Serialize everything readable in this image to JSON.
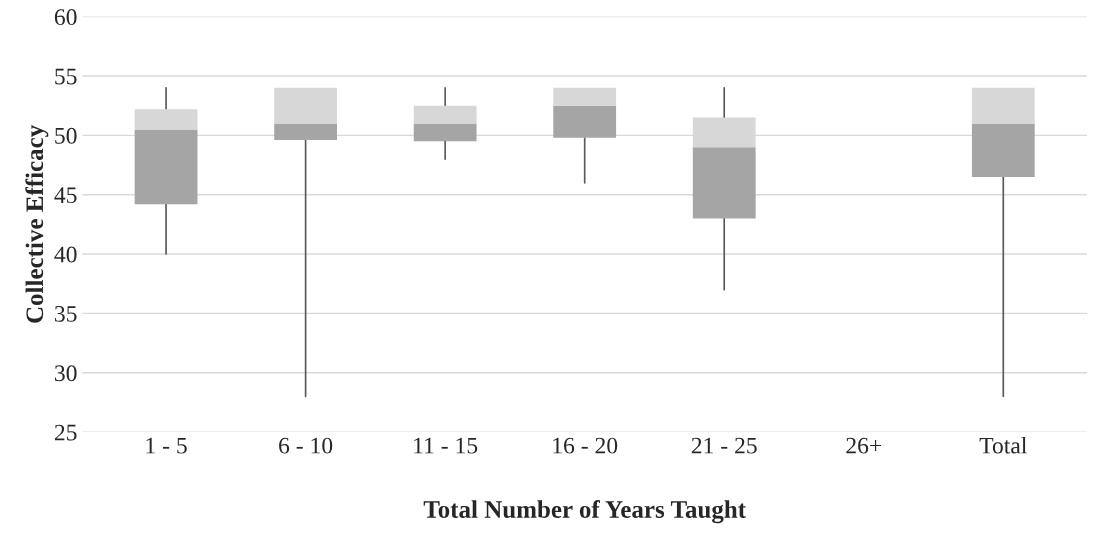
{
  "chart_data": {
    "type": "box",
    "xlabel": "Total Number of Years Taught",
    "ylabel": "Collective Efficacy",
    "categories": [
      "1 - 5",
      "6 - 10",
      "11 - 15",
      "16 - 20",
      "21 - 25",
      "26+",
      "Total"
    ],
    "series": [
      {
        "color": "#a5a5a5",
        "boxes": [
          {
            "low": 40,
            "q1": 44.2,
            "median": 50.5,
            "q3": 52.2,
            "high": 54
          },
          {
            "low": 28,
            "q1": 49.6,
            "median": 51,
            "q3": 54,
            "high": 54
          },
          {
            "low": 48,
            "q1": 49.5,
            "median": 51,
            "q3": 52.5,
            "high": 54
          },
          {
            "low": 46,
            "q1": 49.8,
            "median": 52.5,
            "q3": 54,
            "high": 54
          },
          {
            "low": 37,
            "q1": 43,
            "median": 49,
            "q3": 51.5,
            "high": 54
          },
          null,
          {
            "low": 28,
            "q1": 46.5,
            "median": 51,
            "q3": 54,
            "high": 54
          }
        ]
      }
    ],
    "ylim": [
      25,
      60
    ],
    "yticks": [
      25,
      30,
      35,
      40,
      45,
      50,
      55,
      60
    ],
    "grid": "y",
    "legend": false
  }
}
